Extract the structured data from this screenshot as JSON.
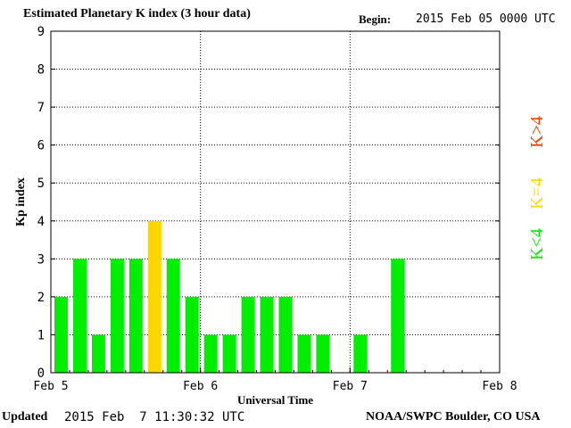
{
  "header": {
    "title": "Estimated Planetary K index (3 hour data)",
    "begin_label": "Begin:",
    "begin_value": "2015 Feb 05 0000 UTC"
  },
  "footer": {
    "updated_label": "Updated",
    "updated_value": "2015 Feb  7 11:30:32 UTC",
    "credit": "NOAA/SWPC Boulder, CO USA"
  },
  "legend": [
    {
      "label": "K<4",
      "color": "#00ee00"
    },
    {
      "label": "K=4",
      "color": "#ffd700"
    },
    {
      "label": "K>4",
      "color": "#ee4000"
    }
  ],
  "chart_data": {
    "type": "bar",
    "title": "Estimated Planetary K index (3 hour data)",
    "xlabel": "Universal Time",
    "ylabel": "Kp index",
    "ylim": [
      0,
      9
    ],
    "yticks": [
      0,
      1,
      2,
      3,
      4,
      5,
      6,
      7,
      8,
      9
    ],
    "xticks": [
      "Feb 5",
      "Feb 6",
      "Feb 7",
      "Feb 8"
    ],
    "slots": 24,
    "grid": true,
    "values": [
      2,
      3,
      1,
      3,
      3,
      4,
      3,
      2,
      1,
      1,
      2,
      2,
      2,
      1,
      1,
      null,
      1,
      null,
      3,
      null,
      null,
      null,
      null,
      null
    ],
    "colors": {
      "below4": "#00ee00",
      "eq4": "#ffd700",
      "above4": "#ee4000"
    }
  }
}
